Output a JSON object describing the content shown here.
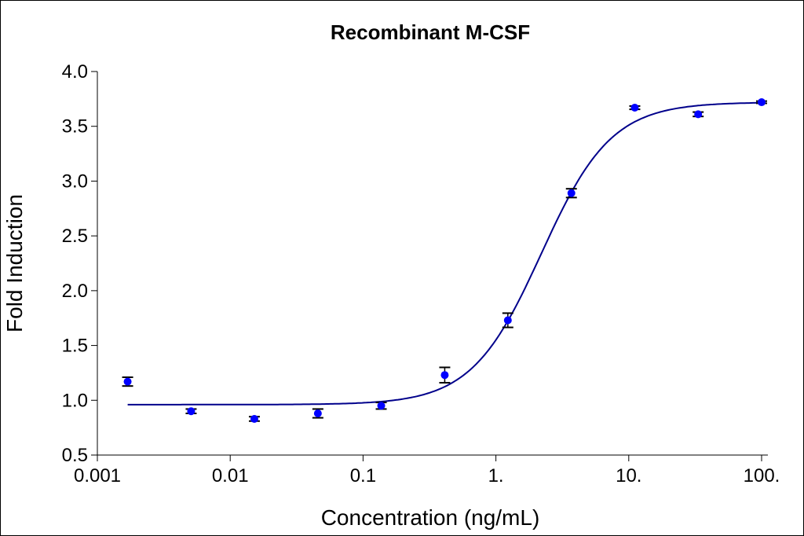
{
  "chart_data": {
    "type": "scatter",
    "title": "Recombinant M-CSF",
    "xlabel": "Concentration (ng/mL)",
    "ylabel": "Fold Induction",
    "xscale": "log",
    "xlim": [
      0.001,
      100
    ],
    "ylim": [
      0.5,
      4.0
    ],
    "xticks": [
      0.001,
      0.01,
      0.1,
      1,
      10,
      100
    ],
    "xtick_labels": [
      "0.001",
      "0.01",
      "0.1",
      "1.",
      "10.",
      "100."
    ],
    "yticks": [
      0.5,
      1.0,
      1.5,
      2.0,
      2.5,
      3.0,
      3.5,
      4.0
    ],
    "ytick_labels": [
      "0.5",
      "1.0",
      "1.5",
      "2.0",
      "2.5",
      "3.0",
      "3.5",
      "4.0"
    ],
    "grid": false,
    "points": [
      {
        "x": 0.00169,
        "y": 1.17,
        "err": 0.04
      },
      {
        "x": 0.00508,
        "y": 0.9,
        "err": 0.02
      },
      {
        "x": 0.0152,
        "y": 0.83,
        "err": 0.02
      },
      {
        "x": 0.0457,
        "y": 0.88,
        "err": 0.04
      },
      {
        "x": 0.137,
        "y": 0.95,
        "err": 0.03
      },
      {
        "x": 0.412,
        "y": 1.23,
        "err": 0.07
      },
      {
        "x": 1.23,
        "y": 1.73,
        "err": 0.065
      },
      {
        "x": 3.7,
        "y": 2.89,
        "err": 0.04
      },
      {
        "x": 11.1,
        "y": 3.67,
        "err": 0.015
      },
      {
        "x": 33.3,
        "y": 3.61,
        "err": 0.02
      },
      {
        "x": 100,
        "y": 3.72,
        "err": 0.01
      }
    ],
    "fit": {
      "model": "4PL",
      "bottom": 0.96,
      "top": 3.72,
      "ec50": 2.2,
      "hill": 1.65
    },
    "colors": {
      "points": "#0000ff",
      "curve": "#00008b",
      "errorbars": "#000000"
    }
  }
}
